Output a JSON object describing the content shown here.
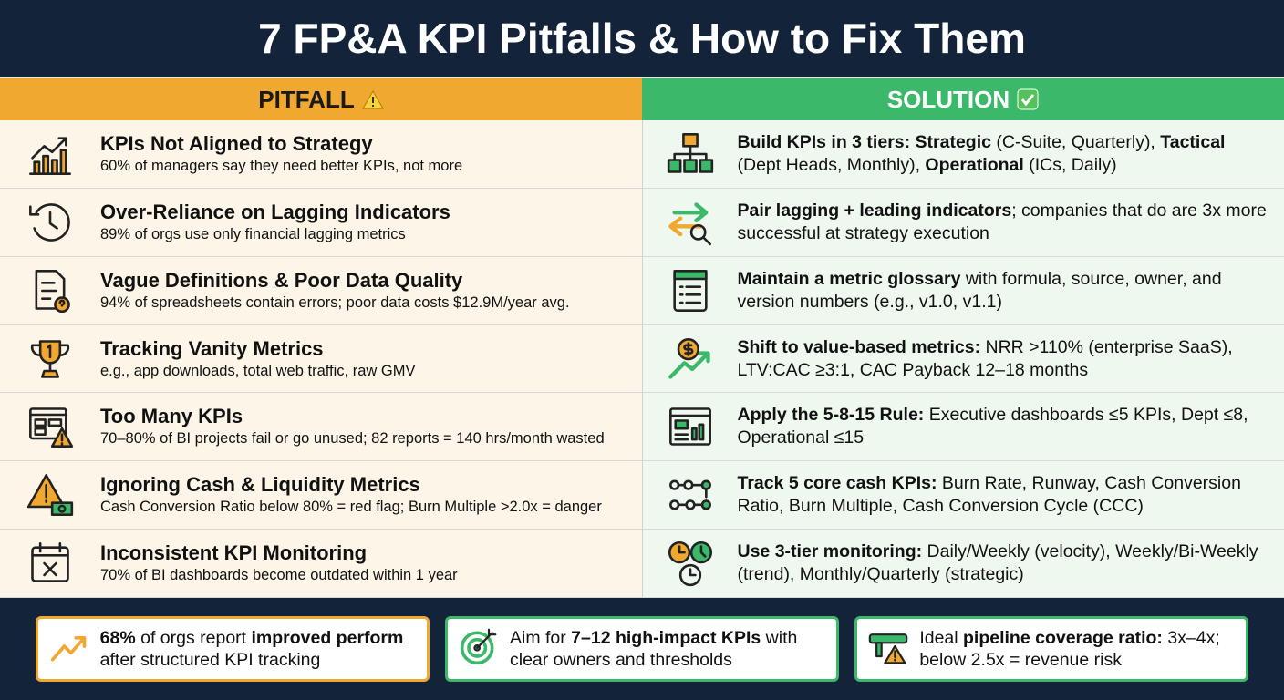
{
  "title": "7 FP&A KPI Pitfalls & How to Fix Them",
  "headers": {
    "pitfall": "PITFALL",
    "solution": "SOLUTION"
  },
  "rows": [
    {
      "pitfall": {
        "title": "KPIs Not Aligned to Strategy",
        "detail": "60% of managers say they need better KPIs, not more"
      },
      "solution": [
        {
          "text": "Build KPIs in 3 tiers: Strategic",
          "bold": true
        },
        {
          "text": " (C-Suite, Quarterly), "
        },
        {
          "text": "Tactical",
          "bold": true
        },
        {
          "text": " (Dept Heads, Monthly), "
        },
        {
          "text": "Operational",
          "bold": true
        },
        {
          "text": " (ICs, Daily)"
        }
      ]
    },
    {
      "pitfall": {
        "title": "Over-Reliance on Lagging Indicators",
        "detail": "89% of orgs use only financial lagging metrics"
      },
      "solution": [
        {
          "text": "Pair lagging + leading indicators",
          "bold": true
        },
        {
          "text": "; companies that do are 3x more successful at strategy execution"
        }
      ]
    },
    {
      "pitfall": {
        "title": "Vague Definitions & Poor Data Quality",
        "detail": "94% of spreadsheets contain errors; poor data costs $12.9M/year avg."
      },
      "solution": [
        {
          "text": "Maintain a metric glossary",
          "bold": true
        },
        {
          "text": " with formula, source, owner, and version numbers (e.g., v1.0, v1.1)"
        }
      ]
    },
    {
      "pitfall": {
        "title": "Tracking Vanity Metrics",
        "detail": "e.g., app downloads, total web traffic, raw GMV"
      },
      "solution": [
        {
          "text": "Shift to value-based metrics:",
          "bold": true
        },
        {
          "text": " NRR >110% (enterprise SaaS), LTV:CAC ≥3:1, CAC Payback 12–18 months"
        }
      ]
    },
    {
      "pitfall": {
        "title": "Too Many KPIs",
        "detail": "70–80% of BI projects fail or go unused; 82 reports = 140 hrs/month wasted"
      },
      "solution": [
        {
          "text": "Apply the 5-8-15 Rule:",
          "bold": true
        },
        {
          "text": " Executive dashboards ≤5 KPIs, Dept ≤8, Operational ≤15"
        }
      ]
    },
    {
      "pitfall": {
        "title": "Ignoring Cash & Liquidity Metrics",
        "detail": "Cash Conversion Ratio below 80% = red flag; Burn Multiple >2.0x = danger"
      },
      "solution": [
        {
          "text": "Track 5 core cash KPIs:",
          "bold": true
        },
        {
          "text": " Burn Rate, Runway, Cash Conversion Ratio, Burn Multiple, Cash Conversion Cycle (CCC)"
        }
      ]
    },
    {
      "pitfall": {
        "title": "Inconsistent KPI Monitoring",
        "detail": "70% of BI dashboards become outdated within 1 year"
      },
      "solution": [
        {
          "text": "Use 3-tier monitoring:",
          "bold": true
        },
        {
          "text": " Daily/Weekly (velocity), Weekly/Bi-Weekly (trend), Monthly/Quarterly (strategic)"
        }
      ]
    }
  ],
  "footer": [
    {
      "border": "#f0a830",
      "segments": [
        {
          "text": "68%",
          "bold": true
        },
        {
          "text": " of orgs report "
        },
        {
          "text": "improved perform",
          "bold": true
        },
        {
          "text": " after structured KPI tracking"
        }
      ]
    },
    {
      "border": "#3cb86a",
      "segments": [
        {
          "text": "Aim for "
        },
        {
          "text": "7–12 high-impact KPIs",
          "bold": true
        },
        {
          "text": " with clear owners and thresholds"
        }
      ]
    },
    {
      "border": "#3cb86a",
      "segments": [
        {
          "text": "Ideal "
        },
        {
          "text": "pipeline coverage ratio:",
          "bold": true
        },
        {
          "text": " 3x–4x; below 2.5x = revenue risk"
        }
      ]
    }
  ]
}
